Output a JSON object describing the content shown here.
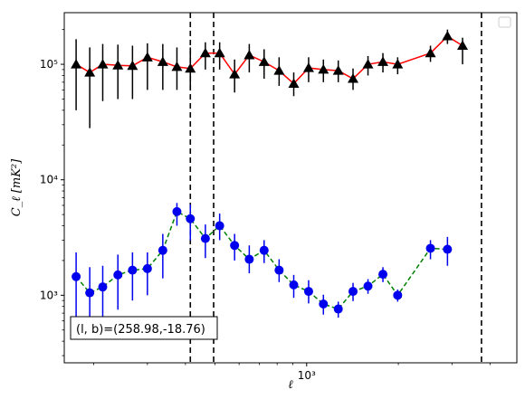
{
  "chart_data": {
    "type": "scatter",
    "title": "",
    "xlabel": "ℓ",
    "ylabel": "C_ℓ [mK²]",
    "xscale": "log",
    "yscale": "log",
    "xlim": [
      160,
      4900
    ],
    "ylim": [
      260,
      280000
    ],
    "grid": false,
    "legend": "upper right (empty)",
    "x_ticks": [
      {
        "value": 1000,
        "label": "10^3"
      }
    ],
    "y_ticks": [
      {
        "value": 1000,
        "label": "10^3"
      },
      {
        "value": 10000,
        "label": "10^4"
      },
      {
        "value": 100000,
        "label": "10^5"
      }
    ],
    "vlines": [
      415,
      495,
      3750
    ],
    "annotation": "(l,b)=(258.98,-18.76)",
    "series": [
      {
        "marker": "triangle",
        "marker_color": "#000000",
        "line_color": "#ff0000",
        "line_style": "solid",
        "points": [
          {
            "x": 175,
            "y": 100000,
            "lo": 40000,
            "hi": 165000
          },
          {
            "x": 194,
            "y": 85000,
            "lo": 28000,
            "hi": 140000
          },
          {
            "x": 214,
            "y": 100000,
            "lo": 48000,
            "hi": 150000
          },
          {
            "x": 240,
            "y": 98000,
            "lo": 50000,
            "hi": 148000
          },
          {
            "x": 268,
            "y": 97000,
            "lo": 50000,
            "hi": 145000
          },
          {
            "x": 300,
            "y": 115000,
            "lo": 60000,
            "hi": 152000
          },
          {
            "x": 337,
            "y": 105000,
            "lo": 60000,
            "hi": 150000
          },
          {
            "x": 375,
            "y": 95000,
            "lo": 60000,
            "hi": 140000
          },
          {
            "x": 415,
            "y": 92000,
            "lo": 60000,
            "hi": 140000
          },
          {
            "x": 465,
            "y": 125000,
            "lo": 90000,
            "hi": 155000
          },
          {
            "x": 518,
            "y": 125000,
            "lo": 90000,
            "hi": 155000
          },
          {
            "x": 580,
            "y": 82000,
            "lo": 57000,
            "hi": 110000
          },
          {
            "x": 648,
            "y": 120000,
            "lo": 85000,
            "hi": 150000
          },
          {
            "x": 725,
            "y": 105000,
            "lo": 75000,
            "hi": 135000
          },
          {
            "x": 812,
            "y": 88000,
            "lo": 65000,
            "hi": 115000
          },
          {
            "x": 907,
            "y": 68000,
            "lo": 53000,
            "hi": 85000
          },
          {
            "x": 1015,
            "y": 93000,
            "lo": 70000,
            "hi": 115000
          },
          {
            "x": 1135,
            "y": 90000,
            "lo": 70000,
            "hi": 110000
          },
          {
            "x": 1270,
            "y": 88000,
            "lo": 70000,
            "hi": 108000
          },
          {
            "x": 1420,
            "y": 75000,
            "lo": 60000,
            "hi": 92000
          },
          {
            "x": 1590,
            "y": 100000,
            "lo": 80000,
            "hi": 118000
          },
          {
            "x": 1780,
            "y": 105000,
            "lo": 85000,
            "hi": 125000
          },
          {
            "x": 1990,
            "y": 100000,
            "lo": 82000,
            "hi": 115000
          },
          {
            "x": 2550,
            "y": 125000,
            "lo": 105000,
            "hi": 145000
          },
          {
            "x": 2900,
            "y": 175000,
            "lo": 150000,
            "hi": 200000
          },
          {
            "x": 3250,
            "y": 145000,
            "lo": 100000,
            "hi": 170000
          }
        ]
      },
      {
        "marker": "circle",
        "marker_color": "#0000ee",
        "line_color": "#008000",
        "line_style": "dashed",
        "points": [
          {
            "x": 175,
            "y": 1450,
            "lo": 600,
            "hi": 2350
          },
          {
            "x": 194,
            "y": 1050,
            "lo": 450,
            "hi": 1750
          },
          {
            "x": 214,
            "y": 1180,
            "lo": 550,
            "hi": 1800
          },
          {
            "x": 240,
            "y": 1500,
            "lo": 750,
            "hi": 2250
          },
          {
            "x": 268,
            "y": 1650,
            "lo": 900,
            "hi": 2350
          },
          {
            "x": 300,
            "y": 1700,
            "lo": 1000,
            "hi": 2350
          },
          {
            "x": 337,
            "y": 2450,
            "lo": 1400,
            "hi": 3400
          },
          {
            "x": 375,
            "y": 5300,
            "lo": 4000,
            "hi": 6300
          },
          {
            "x": 415,
            "y": 4600,
            "lo": 3000,
            "hi": 6100
          },
          {
            "x": 465,
            "y": 3100,
            "lo": 2100,
            "hi": 4100
          },
          {
            "x": 518,
            "y": 4000,
            "lo": 3000,
            "hi": 5100
          },
          {
            "x": 580,
            "y": 2700,
            "lo": 2000,
            "hi": 3400
          },
          {
            "x": 648,
            "y": 2050,
            "lo": 1550,
            "hi": 2700
          },
          {
            "x": 725,
            "y": 2450,
            "lo": 1900,
            "hi": 3000
          },
          {
            "x": 812,
            "y": 1650,
            "lo": 1300,
            "hi": 2050
          },
          {
            "x": 907,
            "y": 1230,
            "lo": 950,
            "hi": 1500
          },
          {
            "x": 1015,
            "y": 1080,
            "lo": 850,
            "hi": 1350
          },
          {
            "x": 1135,
            "y": 840,
            "lo": 680,
            "hi": 1010
          },
          {
            "x": 1270,
            "y": 760,
            "lo": 640,
            "hi": 880
          },
          {
            "x": 1420,
            "y": 1080,
            "lo": 890,
            "hi": 1280
          },
          {
            "x": 1590,
            "y": 1200,
            "lo": 1030,
            "hi": 1380
          },
          {
            "x": 1780,
            "y": 1520,
            "lo": 1300,
            "hi": 1750
          },
          {
            "x": 1990,
            "y": 1000,
            "lo": 880,
            "hi": 1120
          },
          {
            "x": 2550,
            "y": 2550,
            "lo": 2050,
            "hi": 3000
          },
          {
            "x": 2900,
            "y": 2500,
            "lo": 1800,
            "hi": 3200
          }
        ]
      }
    ]
  }
}
